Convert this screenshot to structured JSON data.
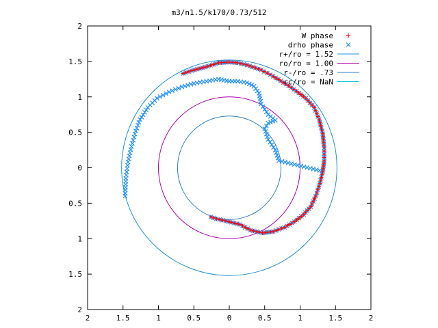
{
  "chart_data": {
    "type": "scatter",
    "title": "m3/n1.5/k170/0.73/512",
    "xlabel": "",
    "ylabel": "",
    "xlim": [
      -2,
      2
    ],
    "ylim": [
      -2,
      2
    ],
    "x_ticks": [
      "2",
      "1.5",
      "1",
      "0.5",
      "0",
      "0.5",
      "1",
      "1.5",
      "2"
    ],
    "y_ticks": [
      "2",
      "1.5",
      "1",
      "0.5",
      "0",
      "0.5",
      "1",
      "1.5",
      "2"
    ],
    "grid": false,
    "legend_position": "top-right",
    "colors": {
      "w_phase": "#ff0000",
      "drho_phase": "#1e90ff",
      "r_plus": "#1e8fd0",
      "r_o": "#b000b0",
      "r_minus": "#2a7fc0",
      "r_c": "#00c8d8"
    },
    "series": [
      {
        "name": "W phase",
        "marker": "plus",
        "spiral_points": [
          [
            -0.65,
            1.33
          ],
          [
            -0.53,
            1.37
          ],
          [
            -0.34,
            1.42
          ],
          [
            -0.15,
            1.48
          ],
          [
            0.0,
            1.49
          ],
          [
            0.12,
            1.48
          ],
          [
            0.25,
            1.45
          ],
          [
            0.45,
            1.38
          ],
          [
            0.62,
            1.29
          ],
          [
            0.8,
            1.18
          ],
          [
            0.95,
            1.08
          ],
          [
            1.08,
            0.98
          ],
          [
            1.2,
            0.85
          ],
          [
            1.27,
            0.68
          ],
          [
            1.32,
            0.48
          ],
          [
            1.34,
            0.28
          ],
          [
            1.34,
            0.1
          ],
          [
            1.32,
            -0.05
          ],
          [
            1.28,
            -0.22
          ],
          [
            1.22,
            -0.4
          ],
          [
            1.15,
            -0.55
          ],
          [
            1.05,
            -0.66
          ],
          [
            0.92,
            -0.76
          ],
          [
            0.78,
            -0.84
          ],
          [
            0.62,
            -0.9
          ],
          [
            0.47,
            -0.92
          ],
          [
            0.3,
            -0.88
          ],
          [
            0.15,
            -0.8
          ],
          [
            -0.05,
            -0.75
          ],
          [
            -0.18,
            -0.72
          ],
          [
            -0.3,
            -0.68
          ]
        ]
      },
      {
        "name": "drho phase",
        "marker": "cross",
        "spiral_points": [
          [
            -1.47,
            -0.4
          ],
          [
            -1.46,
            -0.15
          ],
          [
            -1.43,
            0.08
          ],
          [
            -1.38,
            0.3
          ],
          [
            -1.32,
            0.52
          ],
          [
            -1.26,
            0.68
          ],
          [
            -1.15,
            0.85
          ],
          [
            -1.02,
            0.98
          ],
          [
            -0.85,
            1.07
          ],
          [
            -0.67,
            1.14
          ],
          [
            -0.5,
            1.19
          ],
          [
            -0.32,
            1.22
          ],
          [
            -0.15,
            1.25
          ],
          [
            0.0,
            1.22
          ],
          [
            0.12,
            1.22
          ],
          [
            0.25,
            1.2
          ],
          [
            0.35,
            1.15
          ],
          [
            0.42,
            1.05
          ],
          [
            0.45,
            0.9
          ],
          [
            0.55,
            0.75
          ],
          [
            0.65,
            0.67
          ],
          [
            0.55,
            0.63
          ],
          [
            0.5,
            0.55
          ],
          [
            0.55,
            0.4
          ],
          [
            0.65,
            0.25
          ],
          [
            0.7,
            0.1
          ],
          [
            1.32,
            -0.05
          ]
        ]
      },
      {
        "name": "r+/ro = 1.52",
        "type": "circle",
        "radius": 1.52
      },
      {
        "name": "ro/ro = 1.00",
        "type": "circle",
        "radius": 1.0
      },
      {
        "name": "r-/ro = .73",
        "type": "circle",
        "radius": 0.73
      },
      {
        "name": "rc/ro = NaN",
        "type": "circle",
        "radius": null
      }
    ]
  }
}
